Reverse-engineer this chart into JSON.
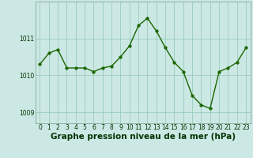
{
  "x": [
    0,
    1,
    2,
    3,
    4,
    5,
    6,
    7,
    8,
    9,
    10,
    11,
    12,
    13,
    14,
    15,
    16,
    17,
    18,
    19,
    20,
    21,
    22,
    23
  ],
  "y": [
    1010.3,
    1010.6,
    1010.7,
    1010.2,
    1010.2,
    1010.2,
    1010.1,
    1010.2,
    1010.25,
    1010.5,
    1010.8,
    1011.35,
    1011.55,
    1011.2,
    1010.75,
    1010.35,
    1010.1,
    1009.45,
    1009.2,
    1009.1,
    1010.1,
    1010.2,
    1010.35,
    1010.75
  ],
  "line_color": "#1a6600",
  "marker_color": "#1a6600",
  "bg_color": "#cce8e4",
  "grid_color": "#99ccbb",
  "xlabel": "Graphe pression niveau de la mer (hPa)",
  "xlabel_color": "#003300",
  "ylim": [
    1008.7,
    1012.0
  ],
  "yticks": [
    1009,
    1010,
    1011
  ],
  "xticks": [
    0,
    1,
    2,
    3,
    4,
    5,
    6,
    7,
    8,
    9,
    10,
    11,
    12,
    13,
    14,
    15,
    16,
    17,
    18,
    19,
    20,
    21,
    22,
    23
  ],
  "tick_color": "#003300",
  "tick_fontsize": 5.5,
  "xlabel_fontsize": 7.5,
  "marker_size": 2.5,
  "line_width": 1.0
}
